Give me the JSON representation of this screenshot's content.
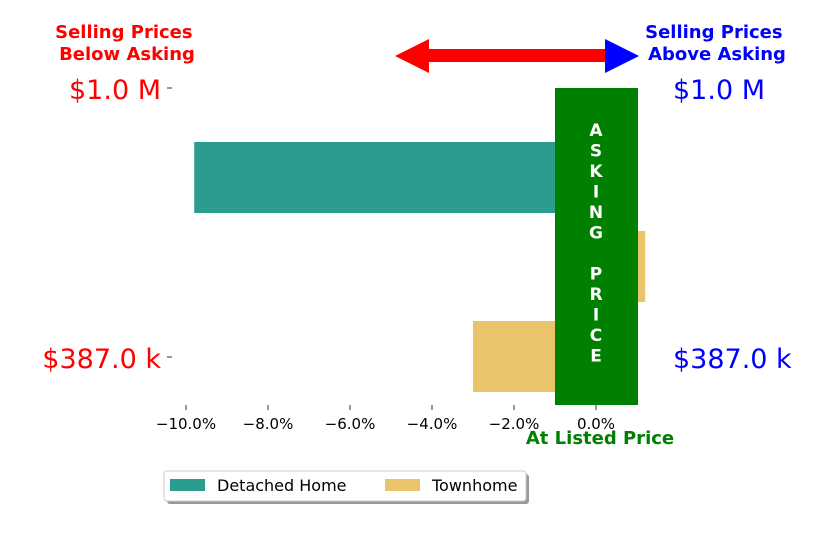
{
  "chart_data": {
    "type": "bar",
    "orientation": "horizontal",
    "x_ticks": [
      "−10.0%",
      "−8.0%",
      "−6.0%",
      "−4.0%",
      "−2.0%",
      "0.0%"
    ],
    "xlim": [
      -10.7,
      1.5
    ],
    "series": [
      {
        "name": "Detached Home",
        "color": "#2a9d8f",
        "values": [
          -9.8,
          null
        ]
      },
      {
        "name": "Townhome",
        "color": "#e9c46a",
        "values": [
          1.2,
          -3.0
        ]
      }
    ],
    "annotations": {
      "left_header": "Selling Prices\nBelow Asking",
      "right_header": "Selling Prices\nAbove Asking",
      "top_left_price": "$1.0 M",
      "top_right_price": "$1.0 M",
      "bottom_left_price": "$387.0 k",
      "bottom_right_price": "$387.0 k",
      "asking_price_label": "ASKING PRICE",
      "listed_price_label": "At Listed Price"
    },
    "legend": {
      "placement": "bottom-center",
      "entries": [
        "Detached Home",
        "Townhome"
      ]
    }
  },
  "colors": {
    "below": "#ff0000",
    "above": "#0000ff",
    "asking": "#008000",
    "detached": "#2a9d8f",
    "townhome": "#e9c46a"
  }
}
